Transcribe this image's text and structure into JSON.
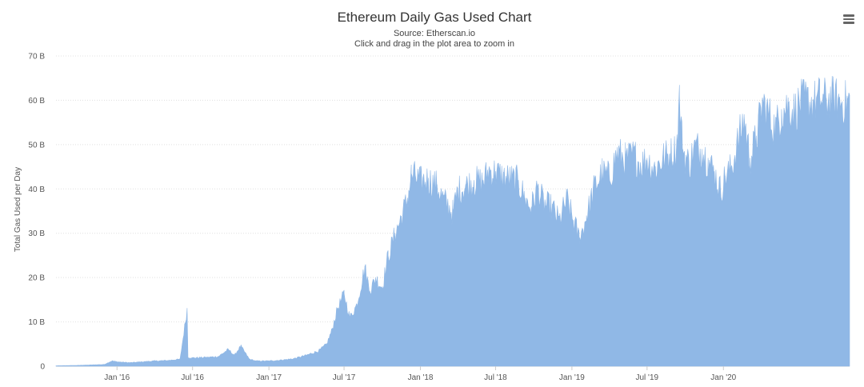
{
  "chart_data": {
    "type": "area",
    "title": "Ethereum Daily Gas Used Chart",
    "subtitle": "Source: Etherscan.io",
    "instruction": "Click and drag in the plot area to zoom in",
    "xlabel": "",
    "ylabel": "Total Gas Used per Day",
    "x_range": [
      "2015-08-07",
      "2020-10-31"
    ],
    "ylim": [
      0,
      70000000000
    ],
    "y_ticks": [
      0,
      10000000000,
      20000000000,
      30000000000,
      40000000000,
      50000000000,
      60000000000,
      70000000000
    ],
    "y_tick_labels": [
      "0",
      "10 B",
      "20 B",
      "30 B",
      "40 B",
      "50 B",
      "60 B",
      "70 B"
    ],
    "x_ticks": [
      "2016-01-01",
      "2016-07-01",
      "2017-01-01",
      "2017-07-01",
      "2018-01-01",
      "2018-07-01",
      "2019-01-01",
      "2019-07-01",
      "2020-01-01"
    ],
    "x_tick_labels": [
      "Jan '16",
      "Jul '16",
      "Jan '17",
      "Jul '17",
      "Jan '18",
      "Jul '18",
      "Jan '19",
      "Jul '19",
      "Jan '20"
    ],
    "grid": true,
    "legend": "none",
    "color": "#90b8e6",
    "series": [
      {
        "values_in": "billions",
        "points": [
          [
            "2015-08-07",
            0.1
          ],
          [
            "2015-10-01",
            0.2
          ],
          [
            "2015-12-01",
            0.4
          ],
          [
            "2015-12-20",
            1.2
          ],
          [
            "2016-01-01",
            1.0
          ],
          [
            "2016-02-01",
            0.8
          ],
          [
            "2016-03-01",
            1.0
          ],
          [
            "2016-04-01",
            1.2
          ],
          [
            "2016-05-01",
            1.3
          ],
          [
            "2016-06-01",
            1.6
          ],
          [
            "2016-06-18",
            13.0
          ],
          [
            "2016-06-20",
            2.0
          ],
          [
            "2016-07-01",
            1.9
          ],
          [
            "2016-08-01",
            2.0
          ],
          [
            "2016-09-01",
            2.2
          ],
          [
            "2016-09-25",
            3.8
          ],
          [
            "2016-10-10",
            2.5
          ],
          [
            "2016-10-25",
            4.6
          ],
          [
            "2016-11-15",
            1.6
          ],
          [
            "2016-12-01",
            1.2
          ],
          [
            "2017-01-01",
            1.2
          ],
          [
            "2017-02-01",
            1.4
          ],
          [
            "2017-03-01",
            1.7
          ],
          [
            "2017-04-01",
            2.5
          ],
          [
            "2017-05-01",
            3.5
          ],
          [
            "2017-05-20",
            5.0
          ],
          [
            "2017-06-01",
            8.0
          ],
          [
            "2017-06-15",
            13.0
          ],
          [
            "2017-07-01",
            16.5
          ],
          [
            "2017-07-15",
            11.0
          ],
          [
            "2017-08-01",
            14.0
          ],
          [
            "2017-08-20",
            22.5
          ],
          [
            "2017-09-01",
            17.0
          ],
          [
            "2017-09-15",
            20.0
          ],
          [
            "2017-10-01",
            18.0
          ],
          [
            "2017-10-15",
            25.0
          ],
          [
            "2017-11-01",
            30.0
          ],
          [
            "2017-11-20",
            35.0
          ],
          [
            "2017-12-01",
            38.0
          ],
          [
            "2017-12-10",
            43.5
          ],
          [
            "2017-12-20",
            43.0
          ],
          [
            "2018-01-01",
            42.0
          ],
          [
            "2018-01-20",
            42.5
          ],
          [
            "2018-02-10",
            41.0
          ],
          [
            "2018-02-25",
            38.0
          ],
          [
            "2018-03-20",
            35.0
          ],
          [
            "2018-04-01",
            40.0
          ],
          [
            "2018-04-20",
            41.0
          ],
          [
            "2018-05-10",
            42.0
          ],
          [
            "2018-06-01",
            42.0
          ],
          [
            "2018-06-15",
            44.5
          ],
          [
            "2018-07-01",
            44.0
          ],
          [
            "2018-07-20",
            43.0
          ],
          [
            "2018-08-10",
            42.5
          ],
          [
            "2018-08-25",
            42.0
          ],
          [
            "2018-09-10",
            38.0
          ],
          [
            "2018-09-25",
            36.0
          ],
          [
            "2018-10-10",
            40.5
          ],
          [
            "2018-10-25",
            37.0
          ],
          [
            "2018-11-15",
            36.0
          ],
          [
            "2018-12-01",
            33.0
          ],
          [
            "2018-12-20",
            38.0
          ],
          [
            "2019-01-01",
            34.0
          ],
          [
            "2019-01-20",
            29.0
          ],
          [
            "2019-02-05",
            34.0
          ],
          [
            "2019-02-25",
            41.0
          ],
          [
            "2019-03-15",
            44.0
          ],
          [
            "2019-04-01",
            43.0
          ],
          [
            "2019-04-20",
            48.5
          ],
          [
            "2019-05-10",
            47.0
          ],
          [
            "2019-06-01",
            48.0
          ],
          [
            "2019-06-15",
            46.0
          ],
          [
            "2019-07-01",
            47.0
          ],
          [
            "2019-07-20",
            45.0
          ],
          [
            "2019-08-10",
            47.5
          ],
          [
            "2019-08-25",
            48.0
          ],
          [
            "2019-09-10",
            49.5
          ],
          [
            "2019-09-17",
            61.0
          ],
          [
            "2019-09-25",
            49.0
          ],
          [
            "2019-10-10",
            46.0
          ],
          [
            "2019-10-25",
            50.0
          ],
          [
            "2019-11-10",
            49.0
          ],
          [
            "2019-11-25",
            47.0
          ],
          [
            "2019-12-10",
            44.0
          ],
          [
            "2019-12-25",
            40.0
          ],
          [
            "2020-01-05",
            43.0
          ],
          [
            "2020-01-20",
            45.0
          ],
          [
            "2020-02-05",
            51.0
          ],
          [
            "2020-02-20",
            56.5
          ],
          [
            "2020-03-05",
            47.0
          ],
          [
            "2020-03-20",
            52.0
          ],
          [
            "2020-04-05",
            60.0
          ],
          [
            "2020-04-20",
            57.0
          ],
          [
            "2020-05-05",
            54.0
          ],
          [
            "2020-05-20",
            58.0
          ],
          [
            "2020-06-05",
            59.5
          ],
          [
            "2020-06-20",
            58.0
          ],
          [
            "2020-07-05",
            60.0
          ],
          [
            "2020-07-20",
            60.5
          ],
          [
            "2020-08-05",
            60.0
          ],
          [
            "2020-08-20",
            61.0
          ],
          [
            "2020-09-05",
            60.5
          ],
          [
            "2020-09-20",
            61.0
          ],
          [
            "2020-10-05",
            60.5
          ],
          [
            "2020-10-20",
            60.0
          ],
          [
            "2020-10-31",
            60.5
          ]
        ]
      }
    ]
  }
}
